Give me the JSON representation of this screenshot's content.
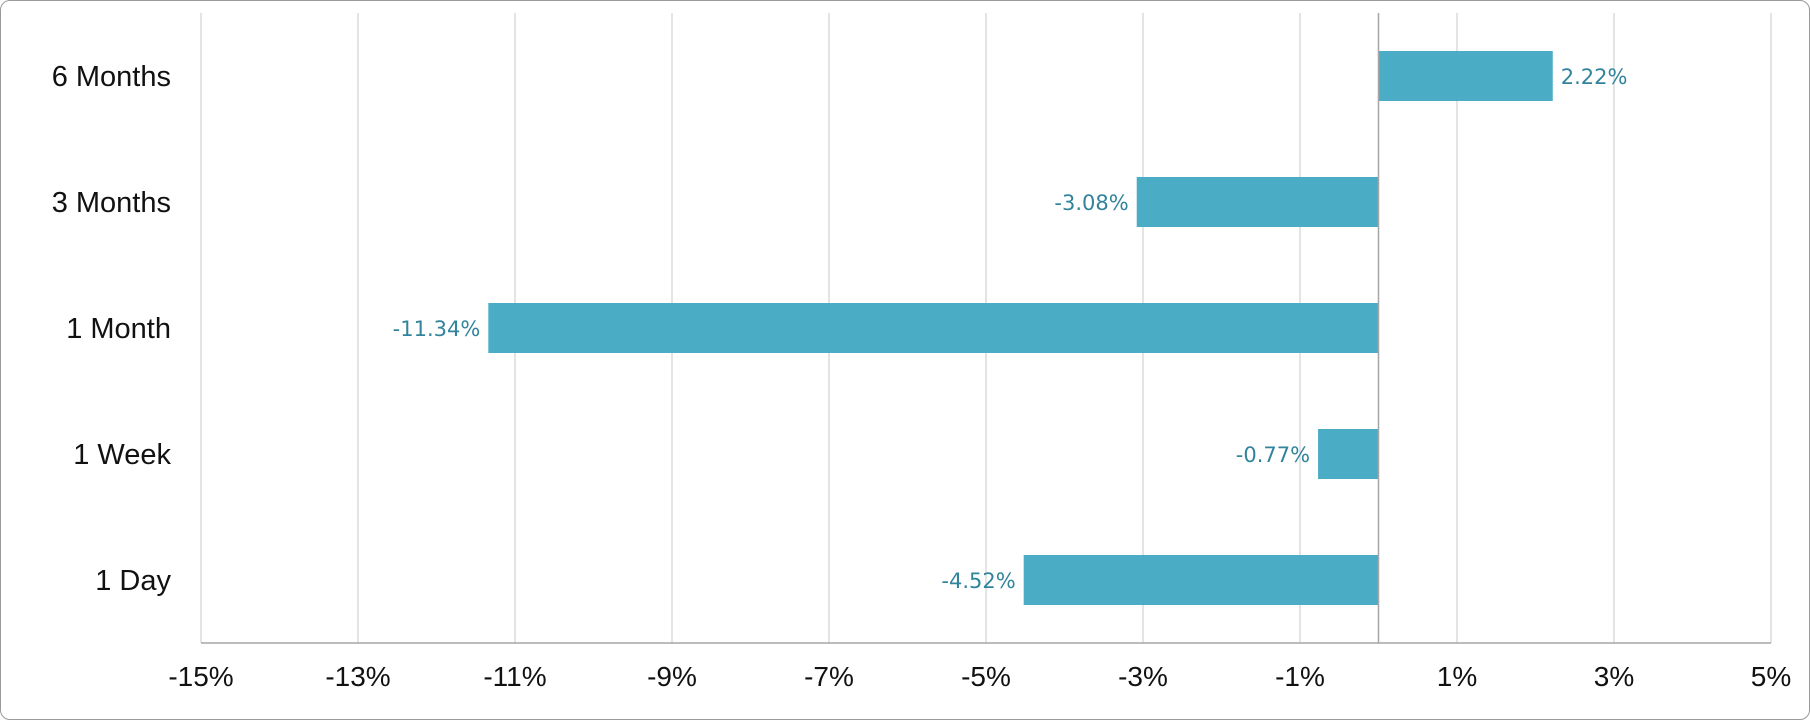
{
  "chart_data": {
    "type": "bar",
    "orientation": "horizontal",
    "categories": [
      "6 Months",
      "3 Months",
      "1 Month",
      "1 Week",
      "1 Day"
    ],
    "values": [
      2.22,
      -3.08,
      -11.34,
      -0.77,
      -4.52
    ],
    "data_labels": [
      "2.22%",
      "-3.08%",
      "-11.34%",
      "-0.77%",
      "-4.52%"
    ],
    "xlim": [
      -15,
      5
    ],
    "x_ticks": [
      -15,
      -13,
      -11,
      -9,
      -7,
      -5,
      -3,
      -1,
      1,
      3,
      5
    ],
    "x_tick_labels": [
      "-15%",
      "-13%",
      "-11%",
      "-9%",
      "-7%",
      "-5%",
      "-3%",
      "-1%",
      "1%",
      "3%",
      "5%"
    ],
    "grid": true,
    "bar_color": "#4BACC6",
    "label_color": "#31849B",
    "grid_color": "#C8C8C8",
    "axis_color": "#A6A6A6"
  }
}
